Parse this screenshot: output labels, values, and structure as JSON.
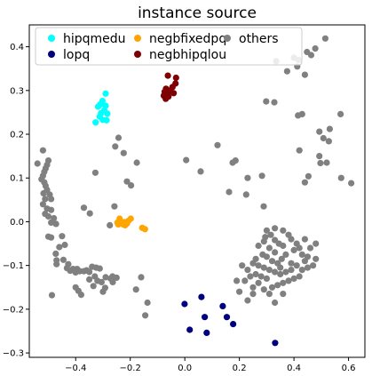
{
  "chart_data": {
    "type": "scatter",
    "title": "instance source",
    "xlabel": "",
    "ylabel": "",
    "xlim": [
      -0.57,
      0.66
    ],
    "ylim": [
      -0.31,
      0.45
    ],
    "xticks": [
      -0.4,
      -0.2,
      0.0,
      0.2,
      0.4,
      0.6
    ],
    "yticks": [
      -0.3,
      -0.2,
      -0.1,
      0.0,
      0.1,
      0.2,
      0.3,
      0.4
    ],
    "xtick_labels": [
      "−0.4",
      "−0.2",
      "0.0",
      "0.2",
      "0.4",
      "0.6"
    ],
    "ytick_labels": [
      "−0.3",
      "−0.2",
      "−0.1",
      "0.0",
      "0.1",
      "0.2",
      "0.3",
      "0.4"
    ],
    "grid": false,
    "legend_position": "top",
    "series": [
      {
        "name": "hipqmedu",
        "color": "#00ffff",
        "points": [
          [
            -0.29,
            0.293
          ],
          [
            -0.302,
            0.276
          ],
          [
            -0.31,
            0.268
          ],
          [
            -0.29,
            0.265
          ],
          [
            -0.318,
            0.263
          ],
          [
            -0.295,
            0.255
          ],
          [
            -0.284,
            0.247
          ],
          [
            -0.307,
            0.248
          ],
          [
            -0.312,
            0.24
          ],
          [
            -0.287,
            0.232
          ],
          [
            -0.327,
            0.227
          ],
          [
            -0.301,
            0.233
          ]
        ]
      },
      {
        "name": "lopq",
        "color": "#00007f",
        "points": [
          [
            -0.001,
            -0.188
          ],
          [
            0.061,
            -0.172
          ],
          [
            0.139,
            -0.193
          ],
          [
            0.073,
            -0.218
          ],
          [
            0.154,
            -0.218
          ],
          [
            0.177,
            -0.234
          ],
          [
            0.018,
            -0.247
          ],
          [
            0.08,
            -0.254
          ],
          [
            0.331,
            -0.277
          ]
        ]
      },
      {
        "name": "negbfixedpq",
        "color": "#ffa500",
        "points": [
          [
            -0.239,
            0.007
          ],
          [
            -0.198,
            0.007
          ],
          [
            -0.207,
            0.002
          ],
          [
            -0.222,
            -0.001
          ],
          [
            -0.212,
            -0.004
          ],
          [
            -0.231,
            -0.004
          ],
          [
            -0.247,
            -0.002
          ],
          [
            -0.244,
            -0.006
          ],
          [
            -0.226,
            -0.006
          ],
          [
            -0.219,
            -0.008
          ],
          [
            -0.156,
            -0.014
          ],
          [
            -0.146,
            -0.017
          ]
        ]
      },
      {
        "name": "negbhipqlou",
        "color": "#7f0000",
        "points": [
          [
            -0.062,
            0.334
          ],
          [
            -0.032,
            0.329
          ],
          [
            -0.034,
            0.316
          ],
          [
            -0.045,
            0.308
          ],
          [
            -0.069,
            0.304
          ],
          [
            -0.055,
            0.3
          ],
          [
            -0.074,
            0.297
          ],
          [
            -0.041,
            0.294
          ],
          [
            -0.063,
            0.293
          ],
          [
            -0.077,
            0.288
          ],
          [
            -0.06,
            0.286
          ],
          [
            -0.07,
            0.281
          ]
        ]
      },
      {
        "name": "others",
        "color": "#808080",
        "points": [
          [
            -0.52,
            0.163
          ],
          [
            -0.54,
            0.133
          ],
          [
            -0.5,
            0.14
          ],
          [
            -0.505,
            0.13
          ],
          [
            -0.51,
            0.122
          ],
          [
            -0.515,
            0.114
          ],
          [
            -0.52,
            0.105
          ],
          [
            -0.525,
            0.097
          ],
          [
            -0.515,
            0.09
          ],
          [
            -0.51,
            0.082
          ],
          [
            -0.505,
            0.073
          ],
          [
            -0.518,
            0.065
          ],
          [
            -0.495,
            0.062
          ],
          [
            -0.49,
            0.052
          ],
          [
            -0.512,
            0.052
          ],
          [
            -0.52,
            0.04
          ],
          [
            -0.505,
            0.03
          ],
          [
            -0.49,
            0.027
          ],
          [
            -0.512,
            0.018
          ],
          [
            -0.5,
            0.012
          ],
          [
            -0.48,
            0.008
          ],
          [
            -0.49,
            -0.002
          ],
          [
            -0.472,
            -0.005
          ],
          [
            -0.5,
            -0.034
          ],
          [
            -0.49,
            -0.036
          ],
          [
            -0.45,
            -0.033
          ],
          [
            -0.46,
            -0.058
          ],
          [
            -0.44,
            -0.053
          ],
          [
            -0.473,
            -0.073
          ],
          [
            -0.47,
            -0.088
          ],
          [
            -0.47,
            -0.097
          ],
          [
            -0.445,
            -0.087
          ],
          [
            -0.427,
            -0.097
          ],
          [
            -0.432,
            -0.106
          ],
          [
            -0.41,
            -0.108
          ],
          [
            -0.42,
            -0.112
          ],
          [
            -0.395,
            -0.108
          ],
          [
            -0.4,
            -0.116
          ],
          [
            -0.385,
            -0.113
          ],
          [
            -0.37,
            -0.113
          ],
          [
            -0.36,
            -0.111
          ],
          [
            -0.34,
            -0.103
          ],
          [
            -0.325,
            -0.105
          ],
          [
            -0.312,
            -0.107
          ],
          [
            -0.35,
            -0.115
          ],
          [
            -0.33,
            -0.125
          ],
          [
            -0.35,
            -0.132
          ],
          [
            -0.32,
            -0.135
          ],
          [
            -0.305,
            -0.138
          ],
          [
            -0.29,
            -0.127
          ],
          [
            -0.265,
            -0.125
          ],
          [
            -0.25,
            -0.128
          ],
          [
            -0.16,
            -0.127
          ],
          [
            -0.335,
            -0.147
          ],
          [
            -0.292,
            -0.151
          ],
          [
            -0.4,
            -0.15
          ],
          [
            -0.3,
            -0.16
          ],
          [
            -0.39,
            -0.158
          ],
          [
            -0.38,
            -0.167
          ],
          [
            -0.487,
            -0.168
          ],
          [
            -0.179,
            -0.155
          ],
          [
            -0.137,
            -0.185
          ],
          [
            -0.145,
            -0.214
          ],
          [
            -0.272,
            -0.13
          ],
          [
            -0.264,
            -0.138
          ],
          [
            -0.37,
            0.032
          ],
          [
            -0.348,
            0.019
          ],
          [
            -0.258,
            0.035
          ],
          [
            -0.255,
            0.172
          ],
          [
            -0.243,
            0.192
          ],
          [
            -0.328,
            0.112
          ],
          [
            -0.224,
            0.157
          ],
          [
            -0.176,
            0.135
          ],
          [
            -0.212,
            0.092
          ],
          [
            -0.197,
            0.083
          ],
          [
            -0.275,
            -0.008
          ],
          [
            0.005,
            0.141
          ],
          [
            0.058,
            0.115
          ],
          [
            0.12,
            0.175
          ],
          [
            0.175,
            0.135
          ],
          [
            0.186,
            0.14
          ],
          [
            0.162,
            0.068
          ],
          [
            0.23,
            0.1
          ],
          [
            0.225,
            0.062
          ],
          [
            0.283,
            0.105
          ],
          [
            0.289,
            0.035
          ],
          [
            0.298,
            0.275
          ],
          [
            0.328,
            0.273
          ],
          [
            0.335,
            0.367
          ],
          [
            0.375,
            0.344
          ],
          [
            0.4,
            0.375
          ],
          [
            0.417,
            0.37
          ],
          [
            0.448,
            0.388
          ],
          [
            0.463,
            0.381
          ],
          [
            0.478,
            0.396
          ],
          [
            0.515,
            0.419
          ],
          [
            0.412,
            0.355
          ],
          [
            0.44,
            0.336
          ],
          [
            0.415,
            0.243
          ],
          [
            0.43,
            0.246
          ],
          [
            0.493,
            0.206
          ],
          [
            0.508,
            0.191
          ],
          [
            0.531,
            0.212
          ],
          [
            0.571,
            0.246
          ],
          [
            0.528,
            0.184
          ],
          [
            0.453,
            0.104
          ],
          [
            0.493,
            0.15
          ],
          [
            0.497,
            0.134
          ],
          [
            0.52,
            0.135
          ],
          [
            0.44,
            0.09
          ],
          [
            0.573,
            0.1
          ],
          [
            0.61,
            0.088
          ],
          [
            0.42,
            0.163
          ],
          [
            0.27,
            -0.055
          ],
          [
            0.29,
            -0.045
          ],
          [
            0.295,
            -0.035
          ],
          [
            0.31,
            -0.06
          ],
          [
            0.315,
            -0.03
          ],
          [
            0.33,
            -0.042
          ],
          [
            0.33,
            -0.07
          ],
          [
            0.345,
            -0.05
          ],
          [
            0.36,
            -0.02
          ],
          [
            0.38,
            -0.03
          ],
          [
            0.39,
            -0.04
          ],
          [
            0.41,
            -0.05
          ],
          [
            0.42,
            -0.06
          ],
          [
            0.43,
            -0.075
          ],
          [
            0.44,
            -0.09
          ],
          [
            0.45,
            -0.08
          ],
          [
            0.46,
            -0.06
          ],
          [
            0.47,
            -0.1
          ],
          [
            0.48,
            -0.05
          ],
          [
            0.37,
            -0.075
          ],
          [
            0.355,
            -0.085
          ],
          [
            0.34,
            -0.095
          ],
          [
            0.32,
            -0.09
          ],
          [
            0.3,
            -0.08
          ],
          [
            0.285,
            -0.075
          ],
          [
            0.26,
            -0.085
          ],
          [
            0.25,
            -0.095
          ],
          [
            0.27,
            -0.1
          ],
          [
            0.29,
            -0.105
          ],
          [
            0.31,
            -0.11
          ],
          [
            0.33,
            -0.115
          ],
          [
            0.35,
            -0.12
          ],
          [
            0.37,
            -0.115
          ],
          [
            0.39,
            -0.11
          ],
          [
            0.41,
            -0.1
          ],
          [
            0.43,
            -0.11
          ],
          [
            0.45,
            -0.105
          ],
          [
            0.42,
            -0.125
          ],
          [
            0.4,
            -0.13
          ],
          [
            0.38,
            -0.135
          ],
          [
            0.36,
            -0.14
          ],
          [
            0.34,
            -0.145
          ],
          [
            0.32,
            -0.15
          ],
          [
            0.3,
            -0.13
          ],
          [
            0.28,
            -0.125
          ],
          [
            0.26,
            -0.12
          ],
          [
            0.24,
            -0.125
          ],
          [
            0.23,
            -0.11
          ],
          [
            0.22,
            -0.135
          ],
          [
            0.25,
            -0.15
          ],
          [
            0.27,
            -0.14
          ],
          [
            0.29,
            -0.155
          ],
          [
            0.31,
            -0.165
          ],
          [
            0.33,
            -0.185
          ],
          [
            0.36,
            -0.165
          ],
          [
            0.21,
            -0.1
          ],
          [
            0.19,
            -0.135
          ],
          [
            0.2,
            -0.16
          ],
          [
            0.23,
            -0.18
          ],
          [
            0.25,
            -0.165
          ],
          [
            0.3,
            -0.02
          ],
          [
            0.36,
            -0.055
          ],
          [
            0.4,
            -0.065
          ],
          [
            0.33,
            -0.015
          ],
          [
            0.39,
            -0.095
          ],
          [
            0.44,
            -0.04
          ],
          [
            0.35,
            -0.105
          ],
          [
            0.48,
            -0.085
          ]
        ]
      }
    ]
  }
}
